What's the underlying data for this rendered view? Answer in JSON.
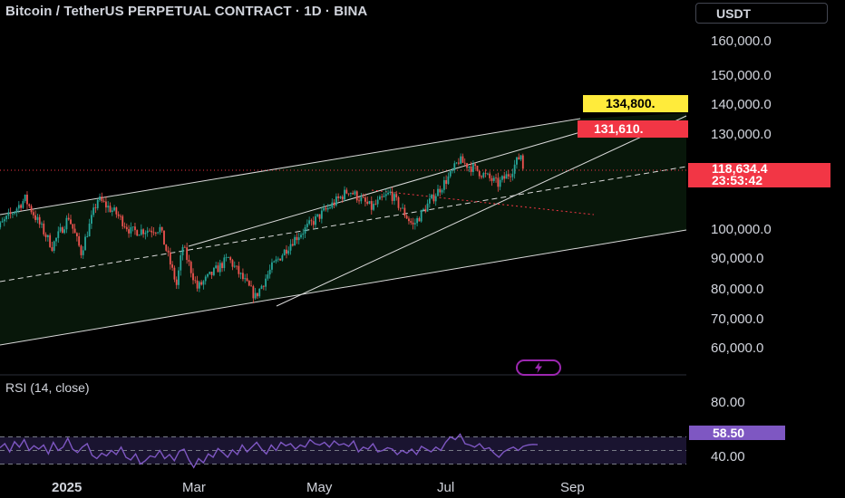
{
  "header": {
    "title": "Bitcoin / TetherUS PERPETUAL CONTRACT · 1D · BINA",
    "currency": "USDT"
  },
  "chart_data": [
    {
      "type": "candlestick",
      "ylim": [
        55000,
        165000
      ],
      "y_ticks": [
        "160,000.0",
        "150,000.0",
        "140,000.0",
        "130,000.0",
        "120,000.0",
        "110,000.0",
        "100,000.0",
        "90,000.0",
        "80,000.0",
        "70,000.0",
        "60,000.0"
      ],
      "x_ticks": [
        "2025",
        "Mar",
        "May",
        "Jul",
        "Sep"
      ],
      "last_price": "118,634.4",
      "countdown": "23:53:42",
      "markers": [
        {
          "label": "134,800.",
          "color": "#ffeb3b"
        },
        {
          "label": "131,610.",
          "color": "#f23645"
        }
      ],
      "anchors": [
        [
          "2024-12-01",
          96000
        ],
        [
          "2024-12-17",
          108000
        ],
        [
          "2024-12-30",
          92000
        ],
        [
          "2025-01-07",
          102000
        ],
        [
          "2025-01-13",
          90000
        ],
        [
          "2025-01-21",
          108000
        ],
        [
          "2025-01-30",
          103000
        ],
        [
          "2025-02-06",
          97000
        ],
        [
          "2025-02-20",
          98000
        ],
        [
          "2025-02-28",
          79000
        ],
        [
          "2025-03-03",
          92000
        ],
        [
          "2025-03-10",
          78000
        ],
        [
          "2025-03-25",
          88000
        ],
        [
          "2025-04-07",
          75000
        ],
        [
          "2025-04-15",
          85000
        ],
        [
          "2025-04-25",
          94000
        ],
        [
          "2025-05-09",
          103000
        ],
        [
          "2025-05-22",
          111000
        ],
        [
          "2025-06-02",
          105000
        ],
        [
          "2025-06-11",
          110000
        ],
        [
          "2025-06-22",
          99000
        ],
        [
          "2025-06-30",
          107000
        ],
        [
          "2025-07-11",
          117000
        ],
        [
          "2025-07-14",
          121000
        ],
        [
          "2025-07-22",
          118000
        ],
        [
          "2025-08-02",
          113000
        ],
        [
          "2025-08-08",
          117000
        ],
        [
          "2025-08-13",
          123000
        ],
        [
          "2025-08-14",
          118634
        ]
      ]
    },
    {
      "type": "line",
      "title": "RSI (14, close)",
      "last_value": "58.50",
      "y_ticks": [
        "80.00",
        "40.00"
      ],
      "bands": [
        70,
        50,
        30
      ],
      "series": [
        {
          "values": [
            54,
            60,
            48,
            63,
            55,
            66,
            50,
            57,
            52,
            58,
            45,
            62,
            50,
            55,
            68,
            52,
            47,
            55,
            60,
            43,
            38,
            46,
            42,
            50,
            44,
            55,
            40,
            36,
            45,
            30,
            35,
            42,
            40,
            50,
            38,
            44,
            35,
            49,
            52,
            36,
            25,
            38,
            32,
            45,
            40,
            53,
            47,
            40,
            51,
            44,
            58,
            48,
            55,
            62,
            52,
            45,
            58,
            50,
            62,
            57,
            60,
            52,
            58,
            55,
            66,
            60,
            58,
            62,
            55,
            64,
            58,
            60,
            56,
            64,
            48,
            55,
            52,
            60,
            48,
            50,
            54,
            52,
            44,
            50,
            46,
            52,
            44,
            56,
            52,
            48,
            55,
            50,
            62,
            70,
            66,
            74,
            60,
            58,
            55,
            60,
            52,
            54,
            46,
            40,
            48,
            52,
            55,
            50,
            56,
            58,
            59,
            58.5
          ]
        }
      ]
    }
  ]
}
